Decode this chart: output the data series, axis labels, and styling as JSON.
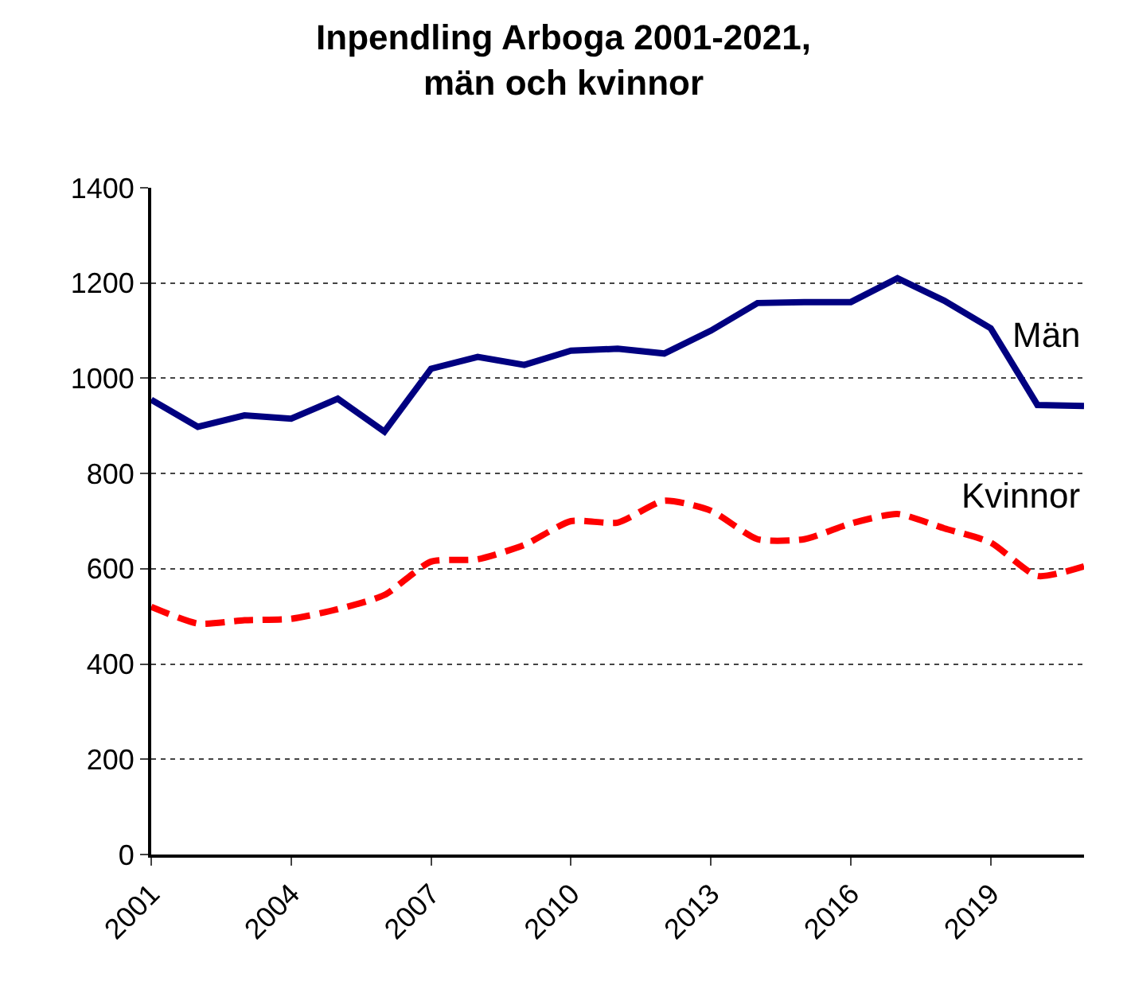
{
  "chart_data": {
    "type": "line",
    "title": "Inpendling Arboga 2001-2021,\nmän och kvinnor",
    "x": [
      2001,
      2002,
      2003,
      2004,
      2005,
      2006,
      2007,
      2008,
      2009,
      2010,
      2011,
      2012,
      2013,
      2014,
      2015,
      2016,
      2017,
      2018,
      2019,
      2020,
      2021
    ],
    "series": [
      {
        "name": "Män",
        "color": "#000080",
        "line_style": "solid",
        "values": [
          955,
          898,
          922,
          915,
          957,
          888,
          1020,
          1045,
          1028,
          1058,
          1062,
          1052,
          1100,
          1158,
          1160,
          1160,
          1210,
          1163,
          1105,
          944,
          942
        ]
      },
      {
        "name": "Kvinnor",
        "color": "#ff0000",
        "line_style": "dashed",
        "values": [
          520,
          485,
          492,
          495,
          515,
          545,
          615,
          620,
          650,
          700,
          697,
          743,
          722,
          662,
          662,
          695,
          715,
          685,
          655,
          585,
          605
        ]
      }
    ],
    "xlim": [
      2001,
      2021
    ],
    "xticks": [
      2001,
      2004,
      2007,
      2010,
      2013,
      2016,
      2019
    ],
    "ylim": [
      0,
      1400
    ],
    "yticks": [
      0,
      200,
      400,
      600,
      800,
      1000,
      1200,
      1400
    ],
    "grid": "y",
    "legend": false,
    "marker": "none"
  }
}
